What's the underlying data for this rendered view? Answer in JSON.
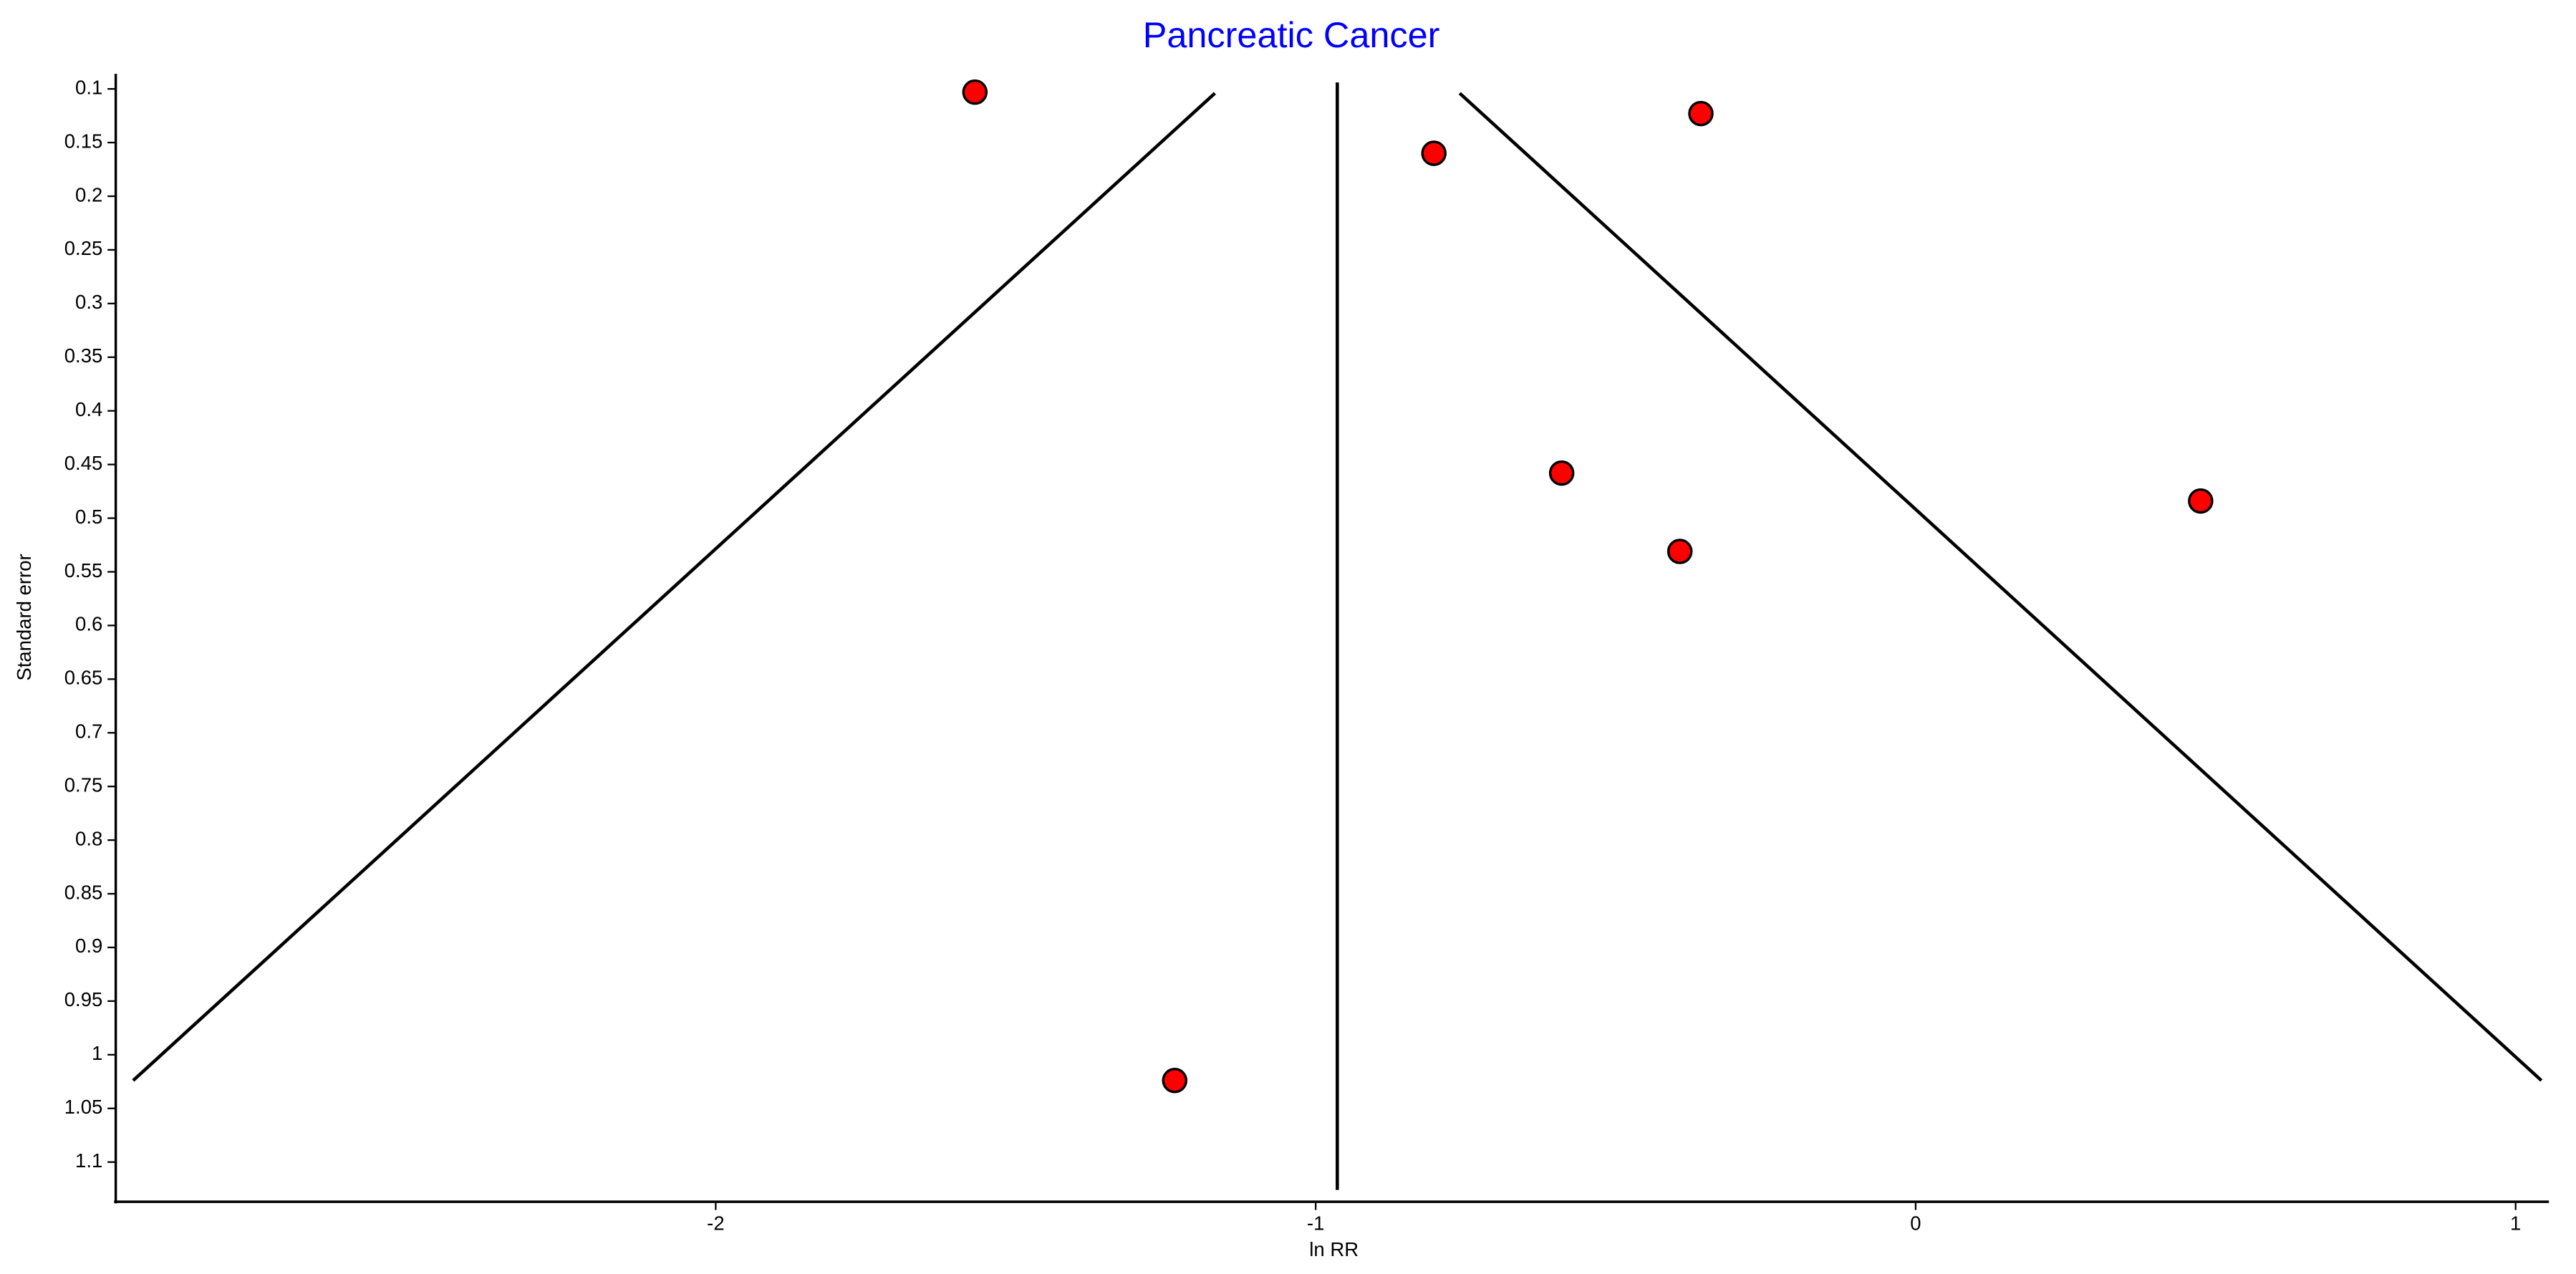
{
  "chart_data": {
    "type": "scatter",
    "title": "Pancreatic Cancer",
    "title_color": "#0000ff",
    "x_label": "ln RR",
    "y_label": "Standard error",
    "xlim": [
      -3.0,
      1.05
    ],
    "ylim": [
      0.086,
      1.137
    ],
    "y_reversed": true,
    "xticks": [
      -2,
      -1,
      0,
      1
    ],
    "yticks": [
      0.1,
      0.15,
      0.2,
      0.25,
      0.3,
      0.35,
      0.4,
      0.45,
      0.5,
      0.55,
      0.6,
      0.65,
      0.7,
      0.75,
      0.8,
      0.85,
      0.9,
      0.95,
      1,
      1.05,
      1.1
    ],
    "series": [
      {
        "color": "#ff0000",
        "x": [
          -1.568,
          -1.235,
          -0.803,
          -0.358,
          -0.59,
          -0.393,
          0.475
        ],
        "values": [
          0.103,
          1.024,
          0.16,
          0.123,
          0.458,
          0.531,
          0.484
        ]
      }
    ],
    "lines": [
      {
        "x": [
          -1.168,
          -2.971
        ],
        "values": [
          0.104,
          1.024
        ]
      },
      {
        "x": [
          -0.76,
          1.043
        ],
        "values": [
          0.104,
          1.024
        ]
      },
      {
        "x": [
          -0.964,
          -0.964
        ],
        "values": [
          0.094,
          1.126
        ]
      }
    ]
  }
}
